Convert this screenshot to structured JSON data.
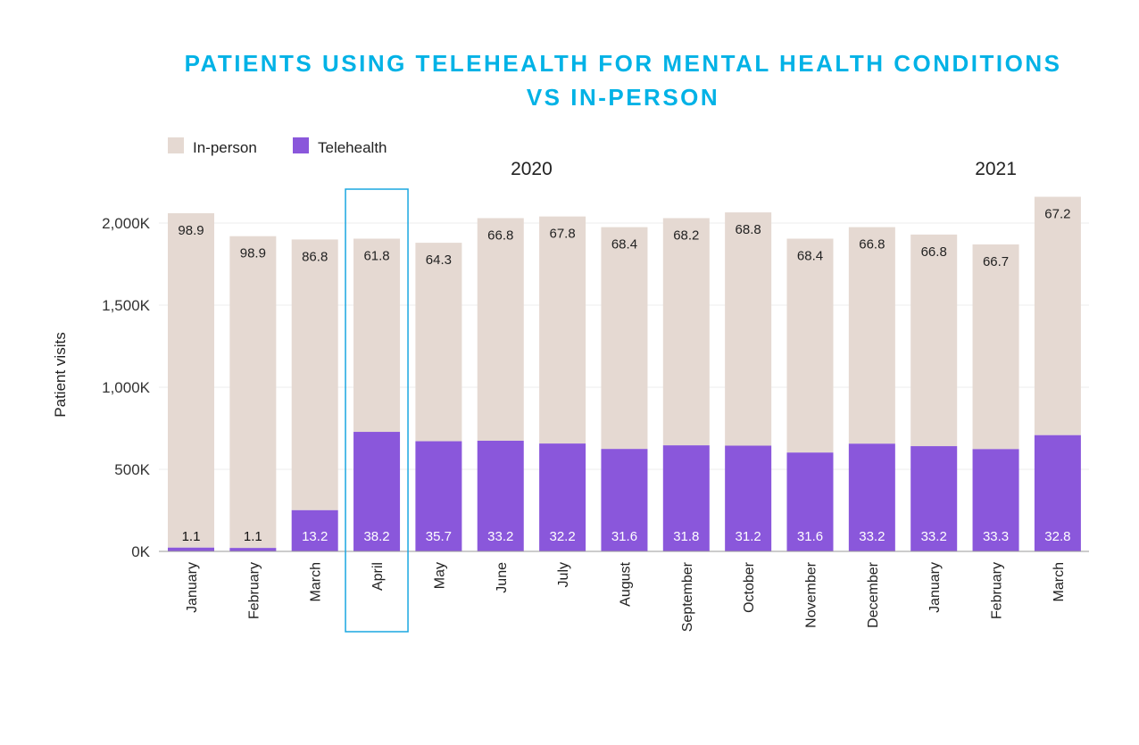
{
  "title_lines": [
    "PATIENTS USING TELEHEALTH FOR MENTAL HEALTH CONDITIONS",
    "VS IN-PERSON"
  ],
  "colors": {
    "title": "#00b2e6",
    "in_person": "#e5d9d2",
    "telehealth": "#8a57db",
    "highlight": "#1aa7e0",
    "grid": "#eeeeee",
    "axis": "#999999"
  },
  "chart_data": {
    "type": "bar",
    "stacked": true,
    "title": "PATIENTS USING TELEHEALTH FOR MENTAL HEALTH CONDITIONS VS IN-PERSON",
    "ylabel": "Patient visits",
    "xlabel": "",
    "ylim": [
      0,
      2000
    ],
    "y_unit": "K",
    "y_ticks": [
      0,
      500,
      1000,
      1500,
      2000
    ],
    "y_tick_labels": [
      "0K",
      "500K",
      "1,000K",
      "1,500K",
      "2,000K"
    ],
    "grid": true,
    "legend": {
      "position": "top-left",
      "entries": [
        "In-person",
        "Telehealth"
      ]
    },
    "year_labels": [
      {
        "label": "2020",
        "start_index": 0,
        "end_index": 11
      },
      {
        "label": "2021",
        "start_index": 12,
        "end_index": 14
      }
    ],
    "highlighted_category": "April",
    "categories": [
      "January",
      "February",
      "March",
      "April",
      "May",
      "June",
      "July",
      "August",
      "September",
      "October",
      "November",
      "December",
      "January",
      "February",
      "March"
    ],
    "totals": [
      2060,
      1920,
      1900,
      1905,
      1880,
      2030,
      2040,
      1975,
      2030,
      2065,
      1905,
      1975,
      1930,
      1870,
      2160
    ],
    "series": [
      {
        "name": "Telehealth",
        "values": [
          23,
          21,
          251,
          728,
          671,
          674,
          657,
          624,
          646,
          644,
          602,
          656,
          641,
          623,
          708
        ],
        "percent_labels": [
          "1.1",
          "1.1",
          "13.2",
          "38.2",
          "35.7",
          "33.2",
          "32.2",
          "31.6",
          "31.8",
          "31.2",
          "31.6",
          "33.2",
          "33.2",
          "33.3",
          "32.8"
        ]
      },
      {
        "name": "In-person",
        "values": [
          2037,
          1899,
          1649,
          1177,
          1209,
          1356,
          1383,
          1351,
          1384,
          1421,
          1303,
          1319,
          1289,
          1247,
          1452
        ],
        "percent_labels": [
          "98.9",
          "98.9",
          "86.8",
          "61.8",
          "64.3",
          "66.8",
          "67.8",
          "68.4",
          "68.2",
          "68.8",
          "68.4",
          "66.8",
          "66.8",
          "66.7",
          "67.2"
        ]
      }
    ]
  }
}
